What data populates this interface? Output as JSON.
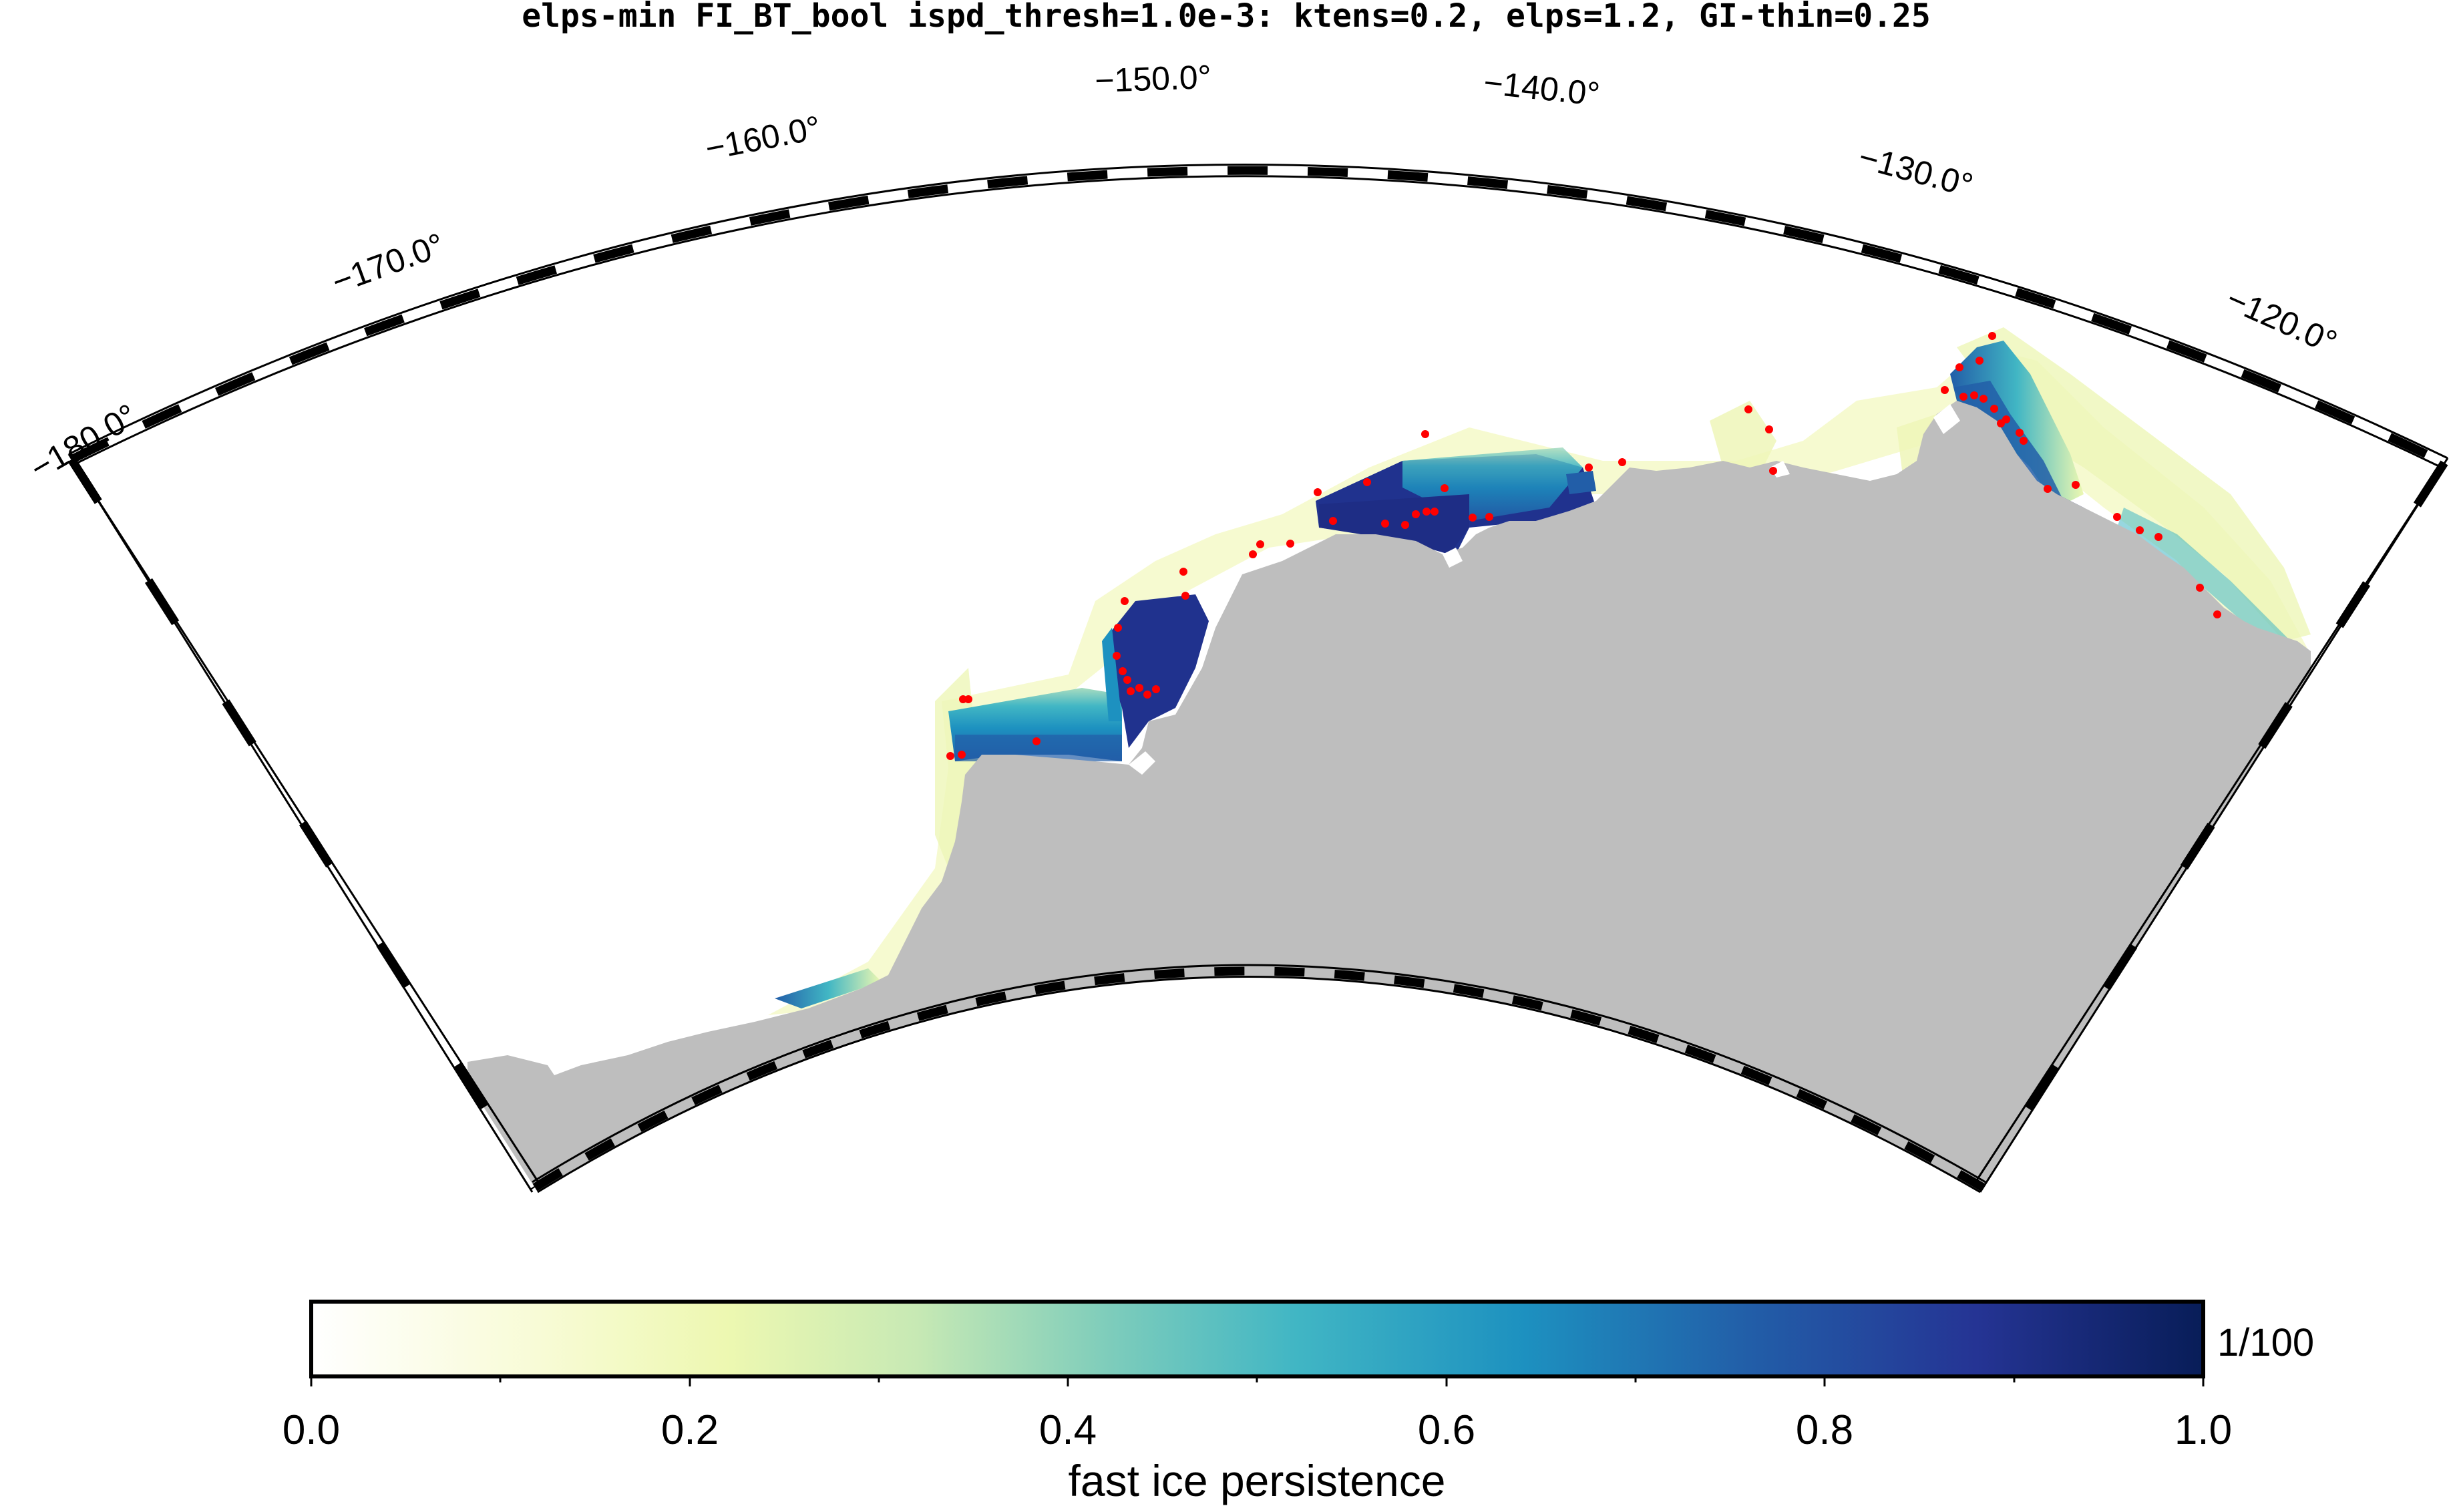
{
  "title": "elps-min FI_BT_bool ispd_thresh=1.0e-3: ktens=0.2, elps=1.2, GI-thin=0.25",
  "map": {
    "projection": "polar stereographic (south)",
    "longitude_labels": [
      "−180.0°",
      "−170.0°",
      "−160.0°",
      "−150.0°",
      "−140.0°",
      "−130.0°",
      "−120.0°"
    ],
    "land_color": "#bebebe",
    "grounded_iceberg_marker_color": "#ff0000",
    "frame_style": "alternating black/white fancy border"
  },
  "colorbar": {
    "label": "fast ice persistence",
    "unit_note": "1/100",
    "ticks": [
      "0.0",
      "0.2",
      "0.4",
      "0.6",
      "0.8",
      "1.0"
    ],
    "range": [
      0.0,
      1.0
    ],
    "colormap": [
      "#ffffd9",
      "#edf8b1",
      "#c7e9b4",
      "#7fcdbb",
      "#41b6c4",
      "#1d91c0",
      "#225ea8",
      "#253494",
      "#081d58"
    ]
  }
}
